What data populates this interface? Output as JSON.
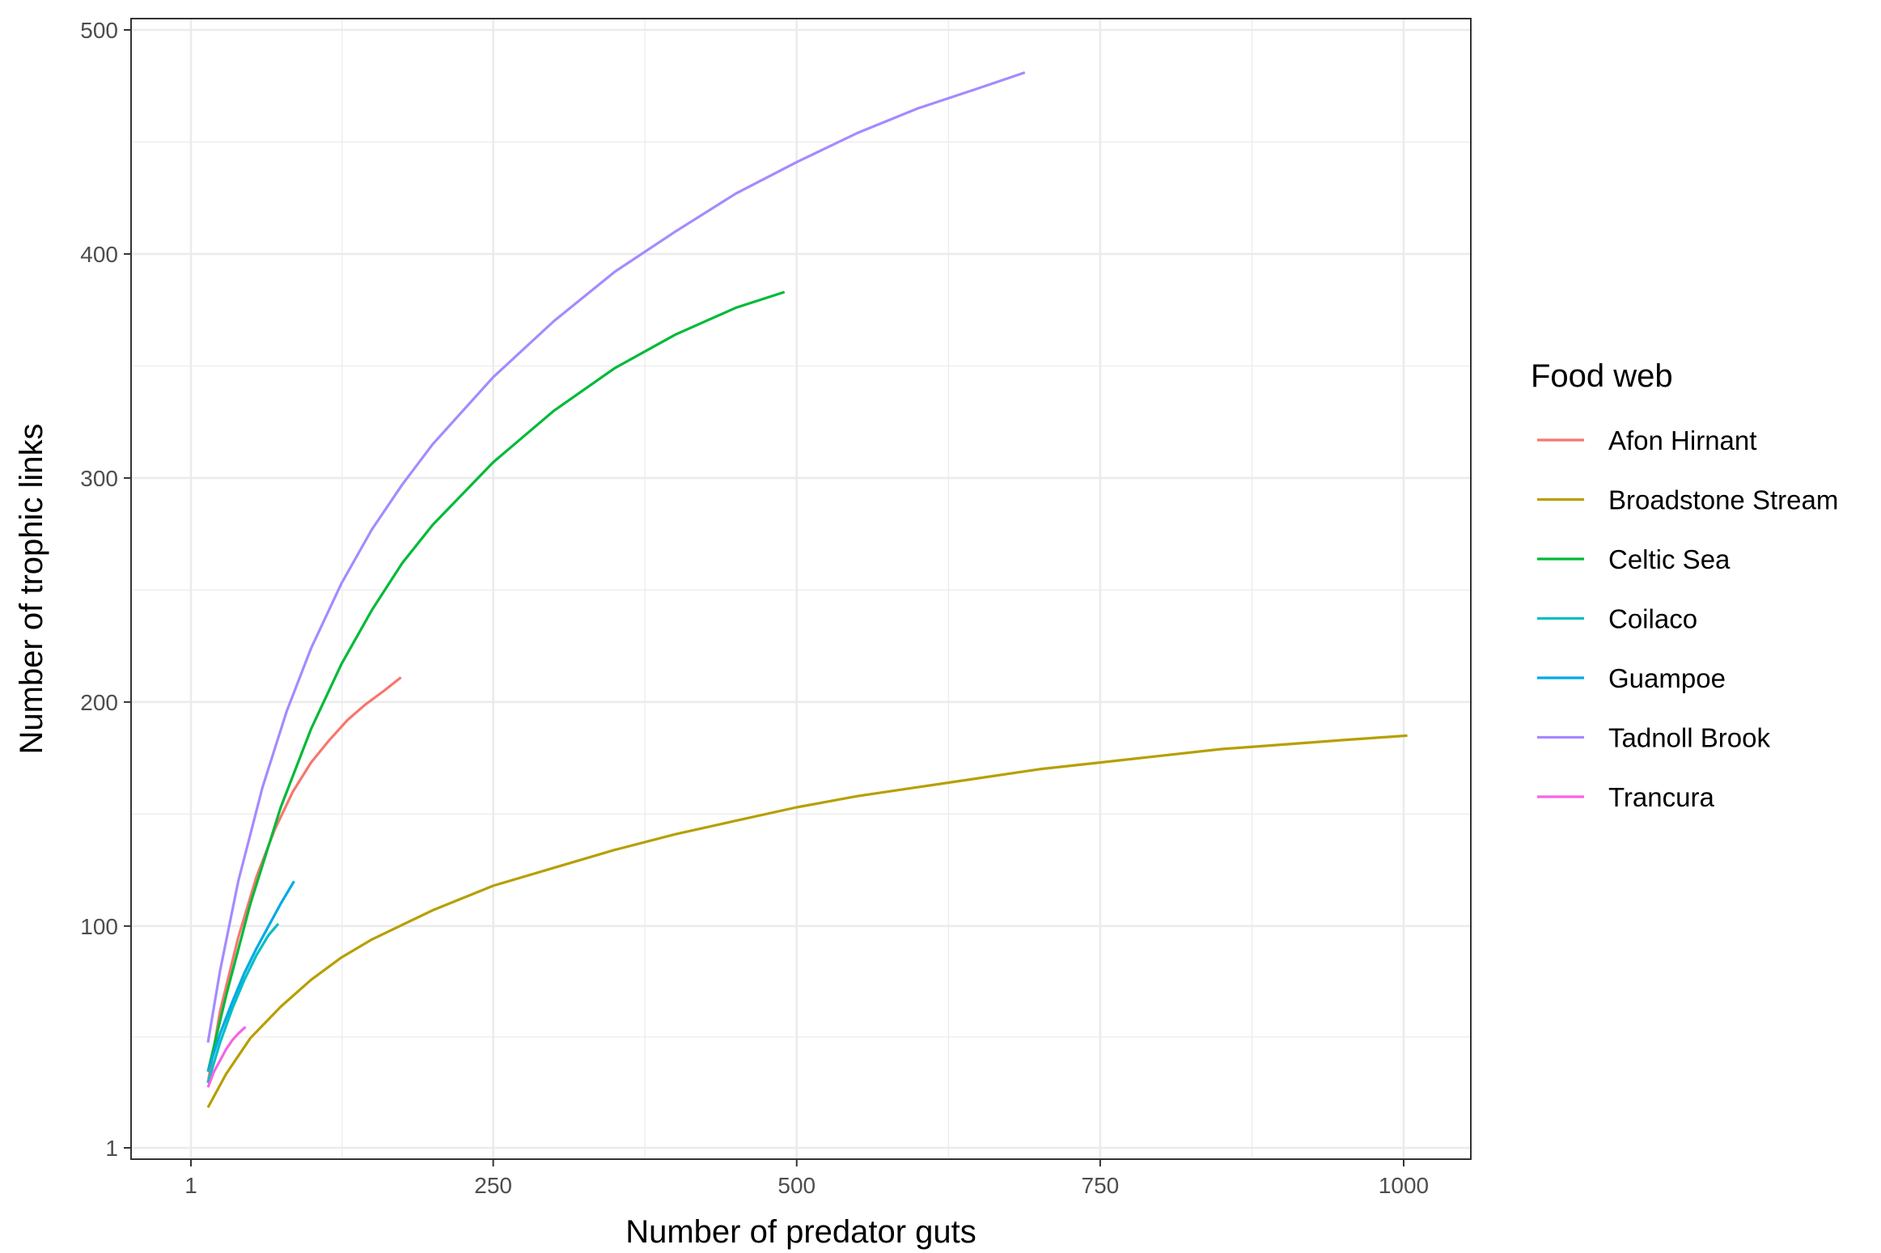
{
  "chart_data": {
    "type": "line",
    "title": "",
    "xlabel": "Number of predator guts",
    "ylabel": "Number of trophic links",
    "xlim": [
      1,
      1000
    ],
    "ylim": [
      1,
      500
    ],
    "x_ticks": [
      1,
      250,
      500,
      750,
      1000
    ],
    "x_tick_labels": [
      "1",
      "250",
      "500",
      "750",
      "1000"
    ],
    "y_ticks": [
      1,
      100,
      200,
      300,
      400,
      500
    ],
    "y_tick_labels": [
      "1",
      "100",
      "200",
      "300",
      "400",
      "500"
    ],
    "grid": true,
    "legend": {
      "title": "Food web",
      "position": "right"
    },
    "series": [
      {
        "name": "Afon Hirnant",
        "color": "#F8766D",
        "x": [
          15,
          25,
          40,
          55,
          70,
          85,
          100,
          115,
          130,
          145,
          160,
          174
        ],
        "y": [
          30,
          62,
          95,
          122,
          143,
          160,
          173,
          183,
          192,
          199,
          205,
          211
        ]
      },
      {
        "name": "Broadstone Stream",
        "color": "#B79F00",
        "x": [
          15,
          30,
          50,
          75,
          100,
          125,
          150,
          200,
          250,
          300,
          350,
          400,
          450,
          500,
          550,
          600,
          650,
          700,
          750,
          800,
          850,
          900,
          950,
          1003
        ],
        "y": [
          19,
          34,
          50,
          64,
          76,
          86,
          94,
          107,
          118,
          126,
          134,
          141,
          147,
          153,
          158,
          162,
          166,
          170,
          173,
          176,
          179,
          181,
          183,
          185
        ]
      },
      {
        "name": "Celtic Sea",
        "color": "#00BA38",
        "x": [
          15,
          30,
          50,
          75,
          100,
          125,
          150,
          175,
          200,
          250,
          300,
          350,
          400,
          450,
          490
        ],
        "y": [
          35,
          69,
          110,
          153,
          188,
          217,
          241,
          262,
          279,
          307,
          330,
          349,
          364,
          376,
          383
        ]
      },
      {
        "name": "Coilaco",
        "color": "#00BFC4",
        "x": [
          15,
          25,
          35,
          45,
          55,
          65,
          73
        ],
        "y": [
          30,
          48,
          63,
          76,
          87,
          96,
          101
        ]
      },
      {
        "name": "Guampoe",
        "color": "#00A9E6",
        "x": [
          15,
          25,
          35,
          45,
          55,
          65,
          75,
          86
        ],
        "y": [
          35,
          52,
          66,
          79,
          90,
          100,
          110,
          120
        ]
      },
      {
        "name": "Tadnoll Brook",
        "color": "#A58AFF",
        "x": [
          15,
          25,
          40,
          60,
          80,
          100,
          125,
          150,
          175,
          200,
          250,
          300,
          350,
          400,
          450,
          500,
          550,
          600,
          650,
          688
        ],
        "y": [
          48,
          80,
          120,
          162,
          196,
          224,
          253,
          277,
          297,
          315,
          345,
          370,
          392,
          410,
          427,
          441,
          454,
          465,
          474,
          481
        ]
      },
      {
        "name": "Trancura",
        "color": "#F564E3",
        "x": [
          15,
          20,
          25,
          30,
          35,
          40,
          46
        ],
        "y": [
          28,
          35,
          40,
          45,
          49,
          52,
          55
        ]
      }
    ]
  }
}
